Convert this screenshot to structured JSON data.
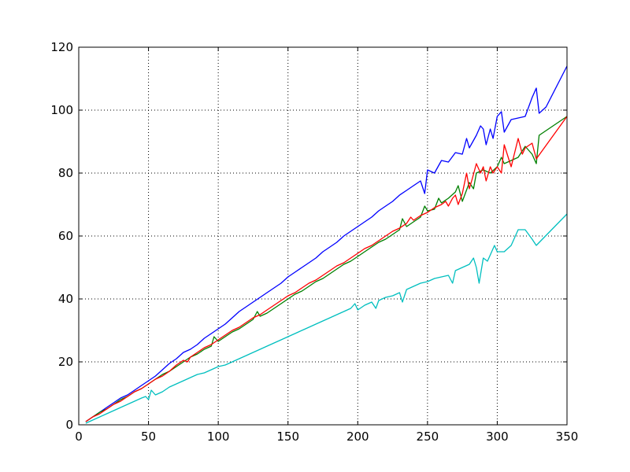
{
  "chart_data": {
    "type": "line",
    "title": "",
    "xlabel": "",
    "ylabel": "",
    "xlim": [
      0,
      350
    ],
    "ylim": [
      0,
      120
    ],
    "xticks": [
      0,
      50,
      100,
      150,
      200,
      250,
      300,
      350
    ],
    "yticks": [
      0,
      20,
      40,
      60,
      80,
      100,
      120
    ],
    "grid": true,
    "legend": "none",
    "series": [
      {
        "color": "#0000ff",
        "points": [
          [
            5,
            1
          ],
          [
            10,
            2.5
          ],
          [
            15,
            4
          ],
          [
            20,
            5.5
          ],
          [
            25,
            7
          ],
          [
            30,
            8.5
          ],
          [
            35,
            9.5
          ],
          [
            40,
            11
          ],
          [
            45,
            12.5
          ],
          [
            50,
            14
          ],
          [
            55,
            15.5
          ],
          [
            60,
            17.5
          ],
          [
            65,
            19.5
          ],
          [
            70,
            21
          ],
          [
            75,
            23
          ],
          [
            80,
            24
          ],
          [
            85,
            25.5
          ],
          [
            90,
            27.5
          ],
          [
            95,
            29
          ],
          [
            100,
            30.5
          ],
          [
            105,
            32
          ],
          [
            110,
            34
          ],
          [
            115,
            36
          ],
          [
            120,
            37.5
          ],
          [
            125,
            39
          ],
          [
            130,
            40.5
          ],
          [
            135,
            42
          ],
          [
            140,
            43.5
          ],
          [
            145,
            45
          ],
          [
            150,
            47
          ],
          [
            155,
            48.5
          ],
          [
            160,
            50
          ],
          [
            165,
            51.5
          ],
          [
            170,
            53
          ],
          [
            175,
            55
          ],
          [
            180,
            56.5
          ],
          [
            185,
            58
          ],
          [
            190,
            60
          ],
          [
            195,
            61.5
          ],
          [
            200,
            63
          ],
          [
            205,
            64.5
          ],
          [
            210,
            66
          ],
          [
            215,
            68
          ],
          [
            220,
            69.5
          ],
          [
            225,
            71
          ],
          [
            230,
            73
          ],
          [
            235,
            74.5
          ],
          [
            240,
            76
          ],
          [
            245,
            77.5
          ],
          [
            248,
            73.5
          ],
          [
            250,
            81
          ],
          [
            255,
            80
          ],
          [
            260,
            84
          ],
          [
            265,
            83.5
          ],
          [
            270,
            86.5
          ],
          [
            275,
            86
          ],
          [
            278,
            91
          ],
          [
            280,
            88
          ],
          [
            285,
            92
          ],
          [
            288,
            95
          ],
          [
            290,
            94
          ],
          [
            292,
            89
          ],
          [
            295,
            94
          ],
          [
            297,
            91
          ],
          [
            300,
            98
          ],
          [
            303,
            99.5
          ],
          [
            305,
            93
          ],
          [
            310,
            97
          ],
          [
            315,
            97.5
          ],
          [
            320,
            98
          ],
          [
            325,
            104
          ],
          [
            328,
            107
          ],
          [
            330,
            99
          ],
          [
            335,
            101
          ],
          [
            350,
            114
          ]
        ]
      },
      {
        "color": "#008000",
        "points": [
          [
            5,
            1
          ],
          [
            10,
            2.5
          ],
          [
            15,
            4
          ],
          [
            20,
            5
          ],
          [
            25,
            6.5
          ],
          [
            30,
            8
          ],
          [
            35,
            9
          ],
          [
            40,
            10.5
          ],
          [
            45,
            11.5
          ],
          [
            50,
            13
          ],
          [
            55,
            14.5
          ],
          [
            60,
            16
          ],
          [
            65,
            17
          ],
          [
            70,
            18.5
          ],
          [
            75,
            20
          ],
          [
            80,
            21.5
          ],
          [
            85,
            22.5
          ],
          [
            90,
            24
          ],
          [
            95,
            25
          ],
          [
            97,
            28
          ],
          [
            100,
            26.5
          ],
          [
            105,
            28
          ],
          [
            110,
            29.5
          ],
          [
            115,
            30.5
          ],
          [
            120,
            32
          ],
          [
            125,
            33.5
          ],
          [
            128,
            36
          ],
          [
            130,
            34.5
          ],
          [
            135,
            35.5
          ],
          [
            140,
            37
          ],
          [
            145,
            38.5
          ],
          [
            150,
            40
          ],
          [
            155,
            41.5
          ],
          [
            160,
            42.5
          ],
          [
            165,
            44
          ],
          [
            170,
            45.5
          ],
          [
            175,
            46.5
          ],
          [
            180,
            48
          ],
          [
            185,
            49.5
          ],
          [
            190,
            51
          ],
          [
            195,
            52
          ],
          [
            200,
            53.5
          ],
          [
            205,
            55
          ],
          [
            210,
            56.5
          ],
          [
            215,
            58
          ],
          [
            220,
            59
          ],
          [
            225,
            60.5
          ],
          [
            230,
            62
          ],
          [
            232,
            65.5
          ],
          [
            235,
            63
          ],
          [
            240,
            64.5
          ],
          [
            245,
            66
          ],
          [
            248,
            69.5
          ],
          [
            250,
            68
          ],
          [
            255,
            68.5
          ],
          [
            258,
            72
          ],
          [
            260,
            70.5
          ],
          [
            265,
            72
          ],
          [
            270,
            74
          ],
          [
            272,
            76
          ],
          [
            275,
            71
          ],
          [
            280,
            77
          ],
          [
            283,
            75
          ],
          [
            285,
            80
          ],
          [
            290,
            81
          ],
          [
            295,
            80
          ],
          [
            300,
            82
          ],
          [
            303,
            85
          ],
          [
            305,
            83
          ],
          [
            315,
            85
          ],
          [
            320,
            88.5
          ],
          [
            325,
            86
          ],
          [
            328,
            83
          ],
          [
            330,
            92
          ],
          [
            350,
            98
          ]
        ]
      },
      {
        "color": "#ff0000",
        "points": [
          [
            5,
            1
          ],
          [
            10,
            2.5
          ],
          [
            15,
            3.5
          ],
          [
            20,
            5
          ],
          [
            25,
            6.5
          ],
          [
            30,
            7.5
          ],
          [
            35,
            9
          ],
          [
            40,
            10.5
          ],
          [
            45,
            11.5
          ],
          [
            50,
            13
          ],
          [
            55,
            14.5
          ],
          [
            60,
            15.5
          ],
          [
            65,
            17
          ],
          [
            70,
            19
          ],
          [
            75,
            20.5
          ],
          [
            78,
            20
          ],
          [
            80,
            21.5
          ],
          [
            85,
            23
          ],
          [
            90,
            24.5
          ],
          [
            95,
            25.5
          ],
          [
            100,
            27
          ],
          [
            105,
            28.5
          ],
          [
            110,
            30
          ],
          [
            115,
            31
          ],
          [
            120,
            32.5
          ],
          [
            125,
            34
          ],
          [
            130,
            35
          ],
          [
            135,
            36.5
          ],
          [
            140,
            38
          ],
          [
            145,
            39.5
          ],
          [
            150,
            41
          ],
          [
            155,
            42
          ],
          [
            160,
            43.5
          ],
          [
            165,
            45
          ],
          [
            170,
            46
          ],
          [
            175,
            47.5
          ],
          [
            180,
            49
          ],
          [
            185,
            50.5
          ],
          [
            190,
            51.5
          ],
          [
            195,
            53
          ],
          [
            200,
            54.5
          ],
          [
            205,
            56
          ],
          [
            210,
            57
          ],
          [
            215,
            58.5
          ],
          [
            220,
            60
          ],
          [
            225,
            61.5
          ],
          [
            230,
            62.5
          ],
          [
            235,
            64
          ],
          [
            238,
            66
          ],
          [
            240,
            65
          ],
          [
            245,
            66.5
          ],
          [
            250,
            67.5
          ],
          [
            255,
            69
          ],
          [
            260,
            70
          ],
          [
            263,
            71
          ],
          [
            265,
            69.5
          ],
          [
            268,
            72
          ],
          [
            270,
            73
          ],
          [
            272,
            70
          ],
          [
            275,
            73.5
          ],
          [
            278,
            80
          ],
          [
            280,
            75
          ],
          [
            282,
            78
          ],
          [
            285,
            83
          ],
          [
            288,
            80
          ],
          [
            290,
            82
          ],
          [
            292,
            77.5
          ],
          [
            295,
            82
          ],
          [
            297,
            80
          ],
          [
            300,
            82
          ],
          [
            303,
            80
          ],
          [
            305,
            89
          ],
          [
            310,
            82
          ],
          [
            315,
            91
          ],
          [
            318,
            86
          ],
          [
            320,
            88
          ],
          [
            325,
            89.5
          ],
          [
            328,
            84.5
          ],
          [
            350,
            98
          ]
        ]
      },
      {
        "color": "#00bfbf",
        "points": [
          [
            5,
            0.5
          ],
          [
            10,
            1.5
          ],
          [
            15,
            2.5
          ],
          [
            20,
            3.5
          ],
          [
            25,
            4.5
          ],
          [
            30,
            5.5
          ],
          [
            35,
            6.5
          ],
          [
            40,
            7.5
          ],
          [
            45,
            8.5
          ],
          [
            48,
            9
          ],
          [
            50,
            8
          ],
          [
            52,
            11
          ],
          [
            55,
            9.5
          ],
          [
            60,
            10.5
          ],
          [
            65,
            12
          ],
          [
            70,
            13
          ],
          [
            75,
            14
          ],
          [
            80,
            15
          ],
          [
            85,
            16
          ],
          [
            90,
            16.5
          ],
          [
            95,
            17.5
          ],
          [
            100,
            18.5
          ],
          [
            105,
            19
          ],
          [
            110,
            20
          ],
          [
            115,
            21
          ],
          [
            120,
            22
          ],
          [
            125,
            23
          ],
          [
            130,
            24
          ],
          [
            135,
            25
          ],
          [
            140,
            26
          ],
          [
            145,
            27
          ],
          [
            150,
            28
          ],
          [
            155,
            29
          ],
          [
            160,
            30
          ],
          [
            165,
            31
          ],
          [
            170,
            32
          ],
          [
            175,
            33
          ],
          [
            180,
            34
          ],
          [
            185,
            35
          ],
          [
            190,
            36
          ],
          [
            195,
            37
          ],
          [
            198,
            38.5
          ],
          [
            200,
            36.5
          ],
          [
            205,
            38
          ],
          [
            210,
            39
          ],
          [
            213,
            37
          ],
          [
            215,
            39.5
          ],
          [
            220,
            40.5
          ],
          [
            225,
            41
          ],
          [
            230,
            42
          ],
          [
            232,
            39
          ],
          [
            235,
            43
          ],
          [
            240,
            44
          ],
          [
            245,
            45
          ],
          [
            250,
            45.5
          ],
          [
            255,
            46.5
          ],
          [
            260,
            47
          ],
          [
            265,
            47.5
          ],
          [
            268,
            45
          ],
          [
            270,
            49
          ],
          [
            275,
            50
          ],
          [
            280,
            51
          ],
          [
            283,
            53
          ],
          [
            285,
            50
          ],
          [
            287,
            45
          ],
          [
            290,
            53
          ],
          [
            293,
            52
          ],
          [
            295,
            54
          ],
          [
            298,
            57
          ],
          [
            300,
            55
          ],
          [
            305,
            55
          ],
          [
            310,
            57
          ],
          [
            315,
            62
          ],
          [
            320,
            62
          ],
          [
            325,
            59
          ],
          [
            328,
            57
          ],
          [
            350,
            67
          ]
        ]
      }
    ]
  }
}
